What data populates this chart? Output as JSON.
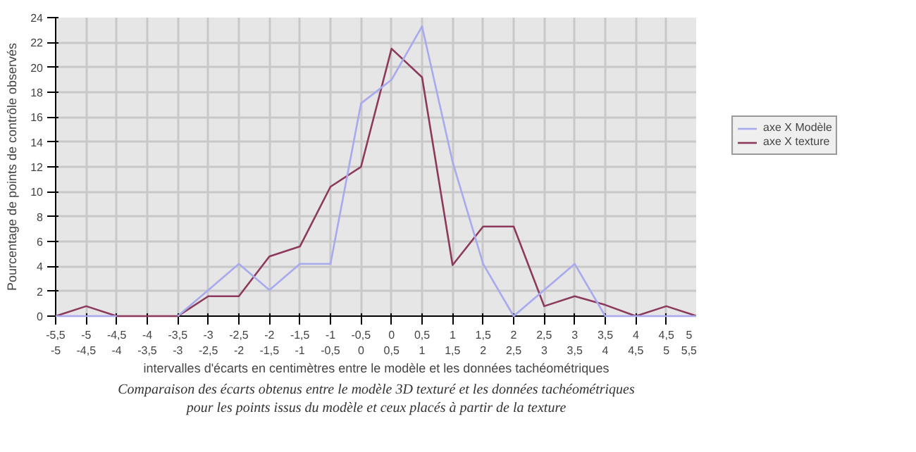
{
  "chart_data": {
    "type": "line",
    "xlabel": "intervalles d'écarts en centimètres entre le modèle et les données tachéométriques",
    "ylabel": "Pourcentage de points de contrôle observés",
    "categories": [
      "-5,5\n-5",
      "-5\n-4,5",
      "-4,5\n-4",
      "-4\n-3,5",
      "-3,5\n-3",
      "-3\n-2,5",
      "-2,5\n-2",
      "-2\n-1,5",
      "-1,5\n-1",
      "-1\n-0,5",
      "-0,5\n0",
      "0\n0,5",
      "0,5\n1",
      "1\n1,5",
      "1,5\n2",
      "2\n2,5",
      "2,5\n3",
      "3\n3,5",
      "3,5\n4",
      "4\n4,5",
      "4,5\n5",
      "5\n5,5"
    ],
    "series": [
      {
        "name": "axe X Modèle",
        "color": "#a9a9ee",
        "values": [
          0,
          0,
          0,
          null,
          0,
          2.1,
          4.2,
          2.1,
          4.2,
          4.2,
          17.1,
          19,
          23.3,
          12.4,
          4.2,
          0,
          2.1,
          4.2,
          0,
          0,
          0,
          0
        ]
      },
      {
        "name": "axe X texture",
        "color": "#8b3a5c",
        "values": [
          0,
          0.8,
          0,
          0,
          0,
          1.6,
          1.6,
          4.8,
          5.6,
          10.4,
          12,
          21.5,
          19.2,
          4.1,
          7.2,
          7.2,
          0.8,
          1.6,
          0.9,
          0,
          0.8,
          0
        ]
      }
    ],
    "ylim": [
      0,
      24
    ],
    "yticks": [
      0,
      2,
      4,
      6,
      8,
      10,
      12,
      14,
      16,
      18,
      20,
      22,
      24
    ],
    "grid": true,
    "legend": "right",
    "annotations": [
      "Comparaison des écarts obtenus entre le modèle 3D texturé et les données tachéométriques",
      "pour les points issus du modèle et ceux placés à partir de la texture"
    ]
  }
}
